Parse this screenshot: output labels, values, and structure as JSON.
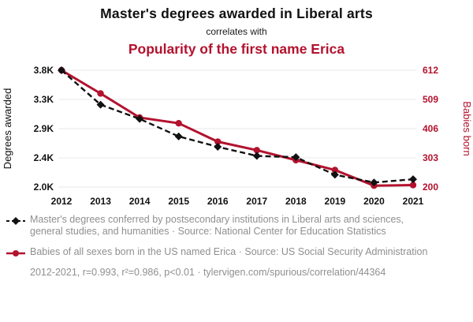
{
  "accent": "#b3122e",
  "header": {
    "title": "Master's degrees awarded in Liberal arts",
    "connector": "correlates with",
    "subtitle": "Popularity of the first name Erica"
  },
  "chart_data": {
    "type": "line",
    "x": [
      2012,
      2013,
      2014,
      2015,
      2016,
      2017,
      2018,
      2019,
      2020,
      2021
    ],
    "series": [
      {
        "name": "Master's degrees awarded in Liberal arts",
        "axis": "left",
        "color": "#111111",
        "style": "dashed",
        "marker": "diamond",
        "values": [
          3800,
          3270,
          3050,
          2780,
          2620,
          2480,
          2460,
          2190,
          2070,
          2120
        ]
      },
      {
        "name": "Popularity of the first name Erica",
        "axis": "right",
        "color": "#b3122e",
        "style": "solid",
        "marker": "circle",
        "values": [
          612,
          530,
          445,
          425,
          360,
          330,
          295,
          260,
          205,
          207
        ]
      }
    ],
    "left_axis": {
      "label": "Degrees awarded",
      "ticks": [
        "3.8K",
        "3.3K",
        "2.9K",
        "2.4K",
        "2.0K"
      ],
      "range": [
        2000,
        3800
      ]
    },
    "right_axis": {
      "label": "Babies born",
      "ticks": [
        "612",
        "509",
        "406",
        "303",
        "200"
      ],
      "range": [
        200,
        612
      ]
    },
    "grid": true,
    "legend_position": "bottom"
  },
  "legend": {
    "series1": "Master's degrees conferred by postsecondary institutions in Liberal arts and sciences, general studies, and humanities · Source: National Center for Education Statistics",
    "series2": "Babies of all sexes born in the US named Erica · Source: US Social Security Administration",
    "footer": "2012-2021, r=0.993, r²=0.986, p<0.01 · tylervigen.com/spurious/correlation/44364"
  }
}
